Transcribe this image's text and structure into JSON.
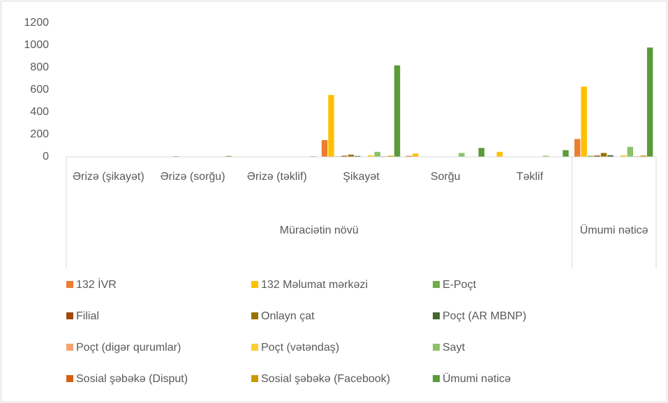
{
  "chart_data": {
    "type": "bar",
    "categories": [
      "Ərizə (şikayət)",
      "Ərizə (sorğu)",
      "Ərizə (təklif)",
      "Şikayət",
      "Sorğu",
      "Təklif",
      null
    ],
    "groups": [
      {
        "label": "Müraciətin növü",
        "size": 6
      },
      {
        "label": "Ümumi nəticə",
        "size": 1
      }
    ],
    "ylim": [
      0,
      1200
    ],
    "yticks": [
      0,
      200,
      400,
      600,
      800,
      1000,
      1200
    ],
    "grid": false,
    "legend": "bottom",
    "series": [
      {
        "name": "132 İVR",
        "color": "#ed7d31",
        "values": [
          0,
          0,
          0,
          150,
          10,
          0,
          160
        ]
      },
      {
        "name": "132 Məlumat mərkəzi",
        "color": "#ffc000",
        "values": [
          0,
          0,
          0,
          555,
          30,
          45,
          630
        ]
      },
      {
        "name": "E-Poçt",
        "color": "#70ad47",
        "values": [
          0,
          0,
          3,
          5,
          0,
          3,
          10
        ]
      },
      {
        "name": "Filial",
        "color": "#9e480e",
        "values": [
          0,
          5,
          0,
          10,
          3,
          0,
          12
        ]
      },
      {
        "name": "Onlayn çat",
        "color": "#997300",
        "values": [
          0,
          0,
          0,
          20,
          0,
          0,
          35
        ]
      },
      {
        "name": "Poçt (AR MBNP)",
        "color": "#43682b",
        "values": [
          0,
          0,
          0,
          8,
          0,
          0,
          15
        ]
      },
      {
        "name": "Poçt (digər qurumlar)",
        "color": "#f4a46f",
        "values": [
          0,
          0,
          0,
          3,
          0,
          0,
          3
        ]
      },
      {
        "name": "Poçt (vətəndaş)",
        "color": "#ffcd33",
        "values": [
          0,
          0,
          0,
          15,
          0,
          0,
          15
        ]
      },
      {
        "name": "Sayt",
        "color": "#8cc168",
        "values": [
          0,
          0,
          0,
          45,
          35,
          10,
          90
        ]
      },
      {
        "name": "Sosial şəbəkə (Disput)",
        "color": "#d26012",
        "values": [
          0,
          0,
          0,
          5,
          0,
          0,
          5
        ]
      },
      {
        "name": "Sosial şəbəkə (Facebook)",
        "color": "#c89a00",
        "values": [
          0,
          0,
          0,
          10,
          0,
          0,
          12
        ]
      },
      {
        "name": "Ümumi nəticə",
        "color": "#5a9a38",
        "values": [
          0,
          8,
          5,
          820,
          80,
          60,
          980
        ]
      }
    ]
  }
}
